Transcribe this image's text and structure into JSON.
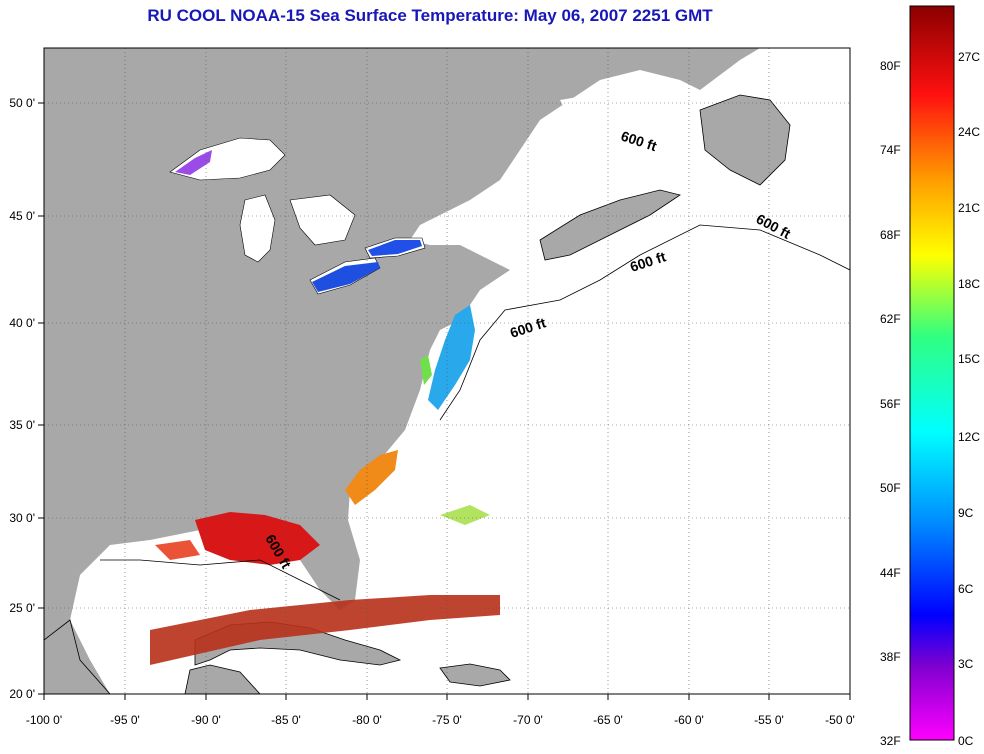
{
  "title": "RU COOL  NOAA-15  Sea Surface Temperature:  May 06, 2007 2251 GMT",
  "map": {
    "lon_ticks": [
      "-100 0'",
      "-95 0'",
      "-90 0'",
      "-85 0'",
      "-80 0'",
      "-75 0'",
      "-70 0'",
      "-65 0'",
      "-60 0'",
      "-55 0'",
      "-50 0'"
    ],
    "lat_ticks": [
      "50 0'",
      "45 0'",
      "40 0'",
      "35 0'",
      "30 0'",
      "25 0'",
      "20 0'"
    ],
    "depth_labels": [
      "600 ft",
      "600 ft",
      "600 ft",
      "600 ft",
      "600 ft"
    ],
    "land_color": "#a8a8a8",
    "ocean_color": "#ffffff",
    "grid": true
  },
  "colorbar": {
    "fahrenheit_labels": [
      "80F",
      "74F",
      "68F",
      "62F",
      "56F",
      "50F",
      "44F",
      "38F",
      "32F"
    ],
    "celsius_labels": [
      "27C",
      "24C",
      "21C",
      "18C",
      "15C",
      "12C",
      "9C",
      "6C",
      "3C",
      "0C"
    ]
  }
}
